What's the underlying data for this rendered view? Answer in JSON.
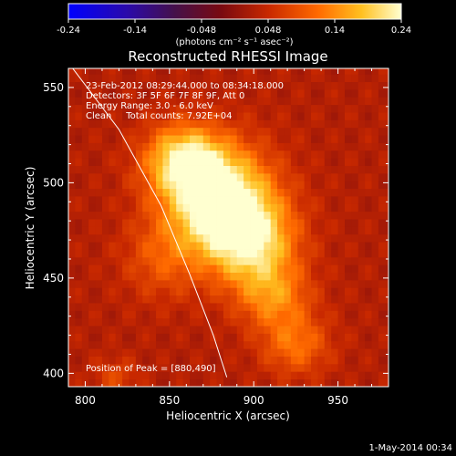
{
  "chart_data": {
    "type": "heatmap",
    "title": "Reconstructed RHESSI Image",
    "xlabel": "Heliocentric X (arcsec)",
    "ylabel": "Heliocentric Y (arcsec)",
    "xlim": [
      790,
      980
    ],
    "ylim": [
      393,
      560
    ],
    "xticks": [
      800,
      850,
      900,
      950
    ],
    "yticks": [
      400,
      450,
      500,
      550
    ],
    "colorbar": {
      "colormap": "red-temperature",
      "range": [
        -0.24,
        0.24
      ],
      "ticks": [
        "-0.24",
        "-0.14",
        "-0.048",
        "0.048",
        "0.14",
        "0.24"
      ],
      "unit": "(photons cm⁻² s⁻¹ asec⁻²)"
    },
    "annotations": [
      "23-Feb-2012 08:29:44.000 to 08:34:18.000",
      "Detectors: 3F 5F 6F 7F 8F 9F, Att 0",
      "Energy Range: 3.0 - 6.0 keV",
      "Clean     Total counts: 7.92E+04"
    ],
    "peak_label": "Position of Peak = [880,490]",
    "peak": [
      880,
      490
    ],
    "sources": [
      {
        "x": 880,
        "y": 490,
        "sx": 22,
        "sy": 20,
        "a": 0.24
      },
      {
        "x": 858,
        "y": 512,
        "sx": 16,
        "sy": 13,
        "a": 0.17
      },
      {
        "x": 900,
        "y": 468,
        "sx": 18,
        "sy": 16,
        "a": 0.15
      },
      {
        "x": 912,
        "y": 440,
        "sx": 15,
        "sy": 12,
        "a": 0.1
      },
      {
        "x": 925,
        "y": 415,
        "sx": 14,
        "sy": 11,
        "a": 0.09
      },
      {
        "x": 818,
        "y": 398,
        "sx": 9,
        "sy": 7,
        "a": 0.05
      },
      {
        "x": 845,
        "y": 460,
        "sx": 16,
        "sy": 15,
        "a": 0.06
      }
    ],
    "background_level": 0.03,
    "limb_curve": [
      [
        790,
        563
      ],
      [
        820,
        528
      ],
      [
        845,
        488
      ],
      [
        862,
        452
      ],
      [
        876,
        420
      ],
      [
        884,
        398
      ]
    ],
    "date_stamp": "1-May-2014 00:34"
  }
}
